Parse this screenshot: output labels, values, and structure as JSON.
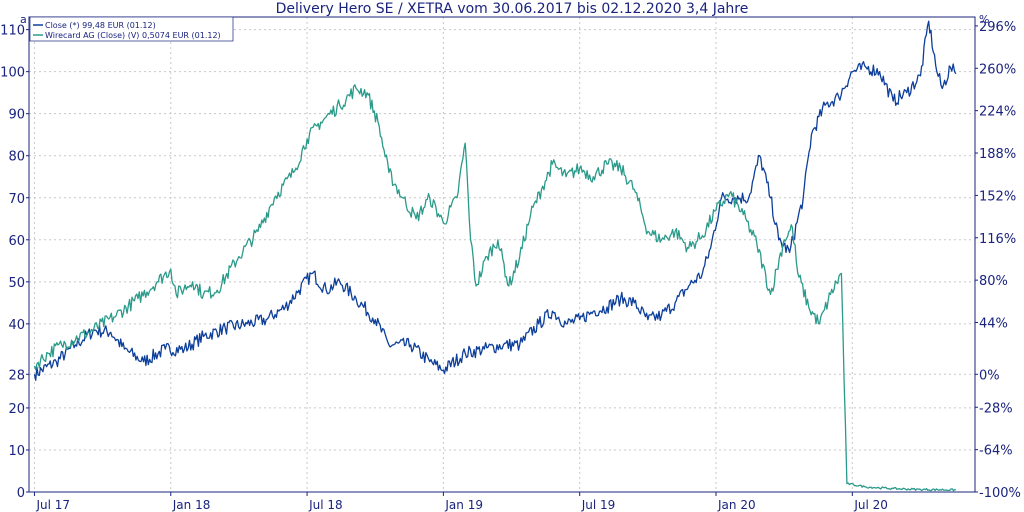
{
  "chart_data": {
    "type": "line",
    "title": "Delivery Hero SE / XETRA vom 30.06.2017 bis 02.12.2020 3,4 Jahre",
    "corner_left": "a",
    "corner_right": "%",
    "y_ticks": [
      0,
      10,
      20,
      28,
      40,
      50,
      60,
      70,
      80,
      90,
      100,
      110
    ],
    "y_right_ticks": [
      "296%",
      "260%",
      "224%",
      "188%",
      "152%",
      "116%",
      "80%",
      "44%",
      "0%",
      "-28%",
      "-64%",
      "-100%"
    ],
    "y_right_values": [
      296,
      260,
      224,
      188,
      152,
      116,
      80,
      44,
      0,
      -28,
      -64,
      -100
    ],
    "x_ticks": [
      {
        "label": "Jul 17",
        "t": 0.0
      },
      {
        "label": "Jan 18",
        "t": 0.5
      },
      {
        "label": "Jul 18",
        "t": 1.0
      },
      {
        "label": "Jan 19",
        "t": 1.5
      },
      {
        "label": "Jul 19",
        "t": 2.0
      },
      {
        "label": "Jan 20",
        "t": 2.5
      },
      {
        "label": "Jul 20",
        "t": 3.0
      }
    ],
    "ylim": [
      0,
      113
    ],
    "xlim": [
      -0.02,
      3.45
    ],
    "grid": true,
    "legend_position": "top-left",
    "series": [
      {
        "name": "Close (*) 99,48 EUR (01.12)",
        "color": "#0d3f9a",
        "points": [
          [
            0.0,
            28.0
          ],
          [
            0.08,
            31.0
          ],
          [
            0.15,
            35.0
          ],
          [
            0.22,
            38.5
          ],
          [
            0.28,
            38.0
          ],
          [
            0.33,
            34.0
          ],
          [
            0.4,
            31.0
          ],
          [
            0.48,
            34.0
          ],
          [
            0.55,
            34.0
          ],
          [
            0.62,
            37.0
          ],
          [
            0.7,
            39.0
          ],
          [
            0.78,
            40.0
          ],
          [
            0.85,
            41.0
          ],
          [
            0.92,
            44.0
          ],
          [
            0.97,
            48.0
          ],
          [
            1.02,
            52.0
          ],
          [
            1.07,
            48.0
          ],
          [
            1.12,
            50.0
          ],
          [
            1.18,
            46.0
          ],
          [
            1.25,
            41.0
          ],
          [
            1.3,
            35.0
          ],
          [
            1.38,
            35.0
          ],
          [
            1.45,
            31.0
          ],
          [
            1.5,
            29.0
          ],
          [
            1.58,
            33.0
          ],
          [
            1.65,
            34.0
          ],
          [
            1.72,
            35.0
          ],
          [
            1.78,
            35.0
          ],
          [
            1.85,
            40.0
          ],
          [
            1.9,
            43.0
          ],
          [
            1.95,
            40.0
          ],
          [
            2.0,
            41.0
          ],
          [
            2.05,
            43.0
          ],
          [
            2.1,
            44.0
          ],
          [
            2.15,
            46.0
          ],
          [
            2.2,
            45.0
          ],
          [
            2.25,
            41.0
          ],
          [
            2.3,
            42.0
          ],
          [
            2.35,
            45.0
          ],
          [
            2.4,
            49.0
          ],
          [
            2.45,
            52.0
          ],
          [
            2.48,
            58.0
          ],
          [
            2.52,
            70.0
          ],
          [
            2.57,
            70.0
          ],
          [
            2.62,
            70.0
          ],
          [
            2.66,
            80.0
          ],
          [
            2.7,
            70.0
          ],
          [
            2.73,
            60.0
          ],
          [
            2.77,
            57.0
          ],
          [
            2.82,
            70.0
          ],
          [
            2.85,
            85.0
          ],
          [
            2.9,
            92.0
          ],
          [
            2.95,
            94.0
          ],
          [
            3.0,
            100.0
          ],
          [
            3.05,
            101.0
          ],
          [
            3.1,
            100.0
          ],
          [
            3.15,
            93.0
          ],
          [
            3.2,
            95.0
          ],
          [
            3.25,
            99.0
          ],
          [
            3.28,
            112.0
          ],
          [
            3.31,
            100.0
          ],
          [
            3.33,
            96.0
          ],
          [
            3.36,
            101.0
          ],
          [
            3.38,
            99.48
          ]
        ]
      },
      {
        "name": "Wirecard AG (Close) (V) 0,5074 EUR (01.12)",
        "color": "#2a9a8a",
        "points": [
          [
            0.0,
            30.0
          ],
          [
            0.05,
            33.0
          ],
          [
            0.1,
            35.0
          ],
          [
            0.2,
            38.0
          ],
          [
            0.3,
            42.0
          ],
          [
            0.38,
            46.0
          ],
          [
            0.45,
            50.0
          ],
          [
            0.5,
            53.0
          ],
          [
            0.52,
            47.0
          ],
          [
            0.58,
            50.0
          ],
          [
            0.62,
            47.0
          ],
          [
            0.67,
            48.0
          ],
          [
            0.75,
            56.0
          ],
          [
            0.82,
            62.0
          ],
          [
            0.88,
            70.0
          ],
          [
            0.95,
            76.0
          ],
          [
            1.0,
            84.0
          ],
          [
            1.05,
            88.0
          ],
          [
            1.12,
            92.0
          ],
          [
            1.18,
            96.0
          ],
          [
            1.22,
            95.0
          ],
          [
            1.26,
            88.0
          ],
          [
            1.3,
            76.0
          ],
          [
            1.35,
            70.0
          ],
          [
            1.4,
            65.0
          ],
          [
            1.45,
            70.0
          ],
          [
            1.5,
            64.0
          ],
          [
            1.55,
            70.0
          ],
          [
            1.58,
            83.0
          ],
          [
            1.6,
            60.0
          ],
          [
            1.62,
            49.0
          ],
          [
            1.66,
            56.0
          ],
          [
            1.7,
            60.0
          ],
          [
            1.74,
            49.0
          ],
          [
            1.78,
            56.0
          ],
          [
            1.82,
            66.0
          ],
          [
            1.86,
            72.0
          ],
          [
            1.9,
            78.0
          ],
          [
            1.95,
            75.0
          ],
          [
            2.0,
            77.0
          ],
          [
            2.05,
            75.0
          ],
          [
            2.1,
            78.0
          ],
          [
            2.15,
            77.0
          ],
          [
            2.2,
            72.0
          ],
          [
            2.25,
            62.0
          ],
          [
            2.3,
            60.0
          ],
          [
            2.35,
            62.0
          ],
          [
            2.4,
            58.0
          ],
          [
            2.45,
            61.0
          ],
          [
            2.5,
            67.0
          ],
          [
            2.55,
            71.0
          ],
          [
            2.6,
            66.0
          ],
          [
            2.65,
            59.0
          ],
          [
            2.7,
            47.0
          ],
          [
            2.75,
            60.0
          ],
          [
            2.78,
            63.0
          ],
          [
            2.8,
            52.0
          ],
          [
            2.84,
            44.0
          ],
          [
            2.88,
            40.0
          ],
          [
            2.92,
            47.0
          ],
          [
            2.96,
            52.0
          ],
          [
            2.98,
            2.0
          ],
          [
            3.05,
            1.2
          ],
          [
            3.15,
            0.8
          ],
          [
            3.25,
            0.6
          ],
          [
            3.38,
            0.5074
          ]
        ]
      }
    ]
  }
}
